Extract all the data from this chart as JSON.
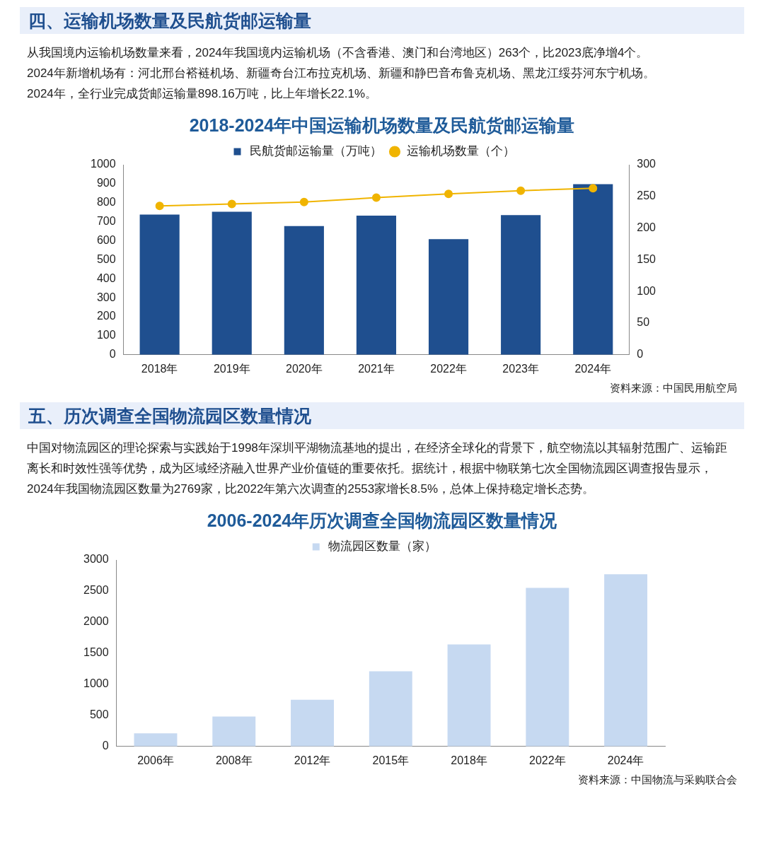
{
  "chart_data": [
    {
      "type": "bar",
      "subtitle": "四、运输机场数量及民航货邮运输量",
      "title": "2018-2024年中国运输机场数量及民航货邮运输量",
      "annotations": [
        "从我国境内运输机场数量来看，2024年我国境内运输机场（不含香港、澳门和台湾地区）263个，比2023底净增4个。",
        "2024年新增机场有：河北邢台褡裢机场、新疆奇台江布拉克机场、新疆和静巴音布鲁克机场、黑龙江绥芬河东宁机场。",
        "2024年，全行业完成货邮运输量898.16万吨，比上年增长22.1%。",
        "资料来源：中国民用航空局"
      ],
      "categories": [
        "2018年",
        "2019年",
        "2020年",
        "2021年",
        "2022年",
        "2023年",
        "2024年"
      ],
      "series": [
        {
          "name": "民航货邮运输量（万吨）",
          "color": "#1f4f8f",
          "values": [
            738,
            753,
            677,
            732,
            608,
            735,
            898
          ]
        },
        {
          "name": "运输机场数量（个）",
          "type": "line",
          "axis": "y2",
          "color": "#f0b400",
          "values": [
            235,
            238,
            241,
            248,
            254,
            259,
            263
          ]
        }
      ],
      "ylim": [
        0,
        1000
      ],
      "yticks": [
        0,
        100,
        200,
        300,
        400,
        500,
        600,
        700,
        800,
        900,
        1000
      ],
      "y2lim": [
        0,
        300
      ],
      "y2ticks": [
        0,
        50,
        100,
        150,
        200,
        250,
        300
      ],
      "marker": "circle",
      "line_style": "solid",
      "legend": "top"
    },
    {
      "type": "bar",
      "subtitle": "五、历次调查全国物流园区数量情况",
      "title": "2006-2024年历次调查全国物流园区数量情况",
      "annotations": [
        "中国对物流园区的理论探索与实践始于1998年深圳平湖物流基地的提出，在经济全球化的背景下，航空物流以其辐射范围广、运输距离长和时效性强等优势，成为区域经济融入世界产业价值链的重要依托。据统计，根据中物联第七次全国物流园区调查报告显示，2024年我国物流园区数量为2769家，比2022年第六次调查的2553家增长8.5%，总体上保持稳定增长态势。",
        "资料来源：中国物流与采购联合会"
      ],
      "categories": [
        "2006年",
        "2008年",
        "2012年",
        "2015年",
        "2018年",
        "2022年",
        "2024年"
      ],
      "series": [
        {
          "name": "物流园区数量（家）",
          "color": "#c6d9f1",
          "values": [
            210,
            480,
            750,
            1210,
            1640,
            2550,
            2770
          ]
        }
      ],
      "ylim": [
        0,
        3000
      ],
      "yticks": [
        0,
        500,
        1000,
        1500,
        2000,
        2500,
        3000
      ],
      "legend": "top"
    }
  ]
}
